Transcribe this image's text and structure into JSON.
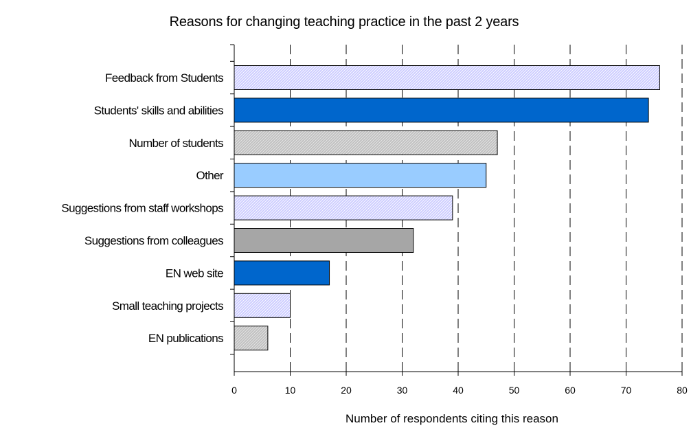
{
  "chart_data": {
    "type": "bar",
    "orientation": "horizontal",
    "title": "Reasons for changing teaching practice in the past 2 years",
    "xlabel": "Number of respondents citing this reason",
    "ylabel": "",
    "xlim": [
      0,
      80
    ],
    "ticks": [
      "0",
      "10",
      "20",
      "30",
      "40",
      "50",
      "60",
      "70",
      "80"
    ],
    "grid": "vertical dashed",
    "categories": [
      "Feedback from Students",
      "Students' skills and abilities",
      "Number of students",
      "Other",
      "Suggestions from staff workshops",
      "Suggestions from colleagues",
      "EN web site",
      "Small teaching projects",
      "EN publications"
    ],
    "values": [
      76,
      74,
      47,
      45,
      39,
      32,
      17,
      10,
      6
    ],
    "bar_colors": [
      "#ccccff",
      "#0066cc",
      "#c0c0c0",
      "#99ccff",
      "#ccccff",
      "#a6a6a6",
      "#0066cc",
      "#ccccff",
      "#c0c0c0"
    ],
    "bar_patterns": [
      "hatched",
      "solid",
      "hatched",
      "solid",
      "hatched",
      "solid",
      "solid",
      "hatched",
      "hatched"
    ]
  }
}
